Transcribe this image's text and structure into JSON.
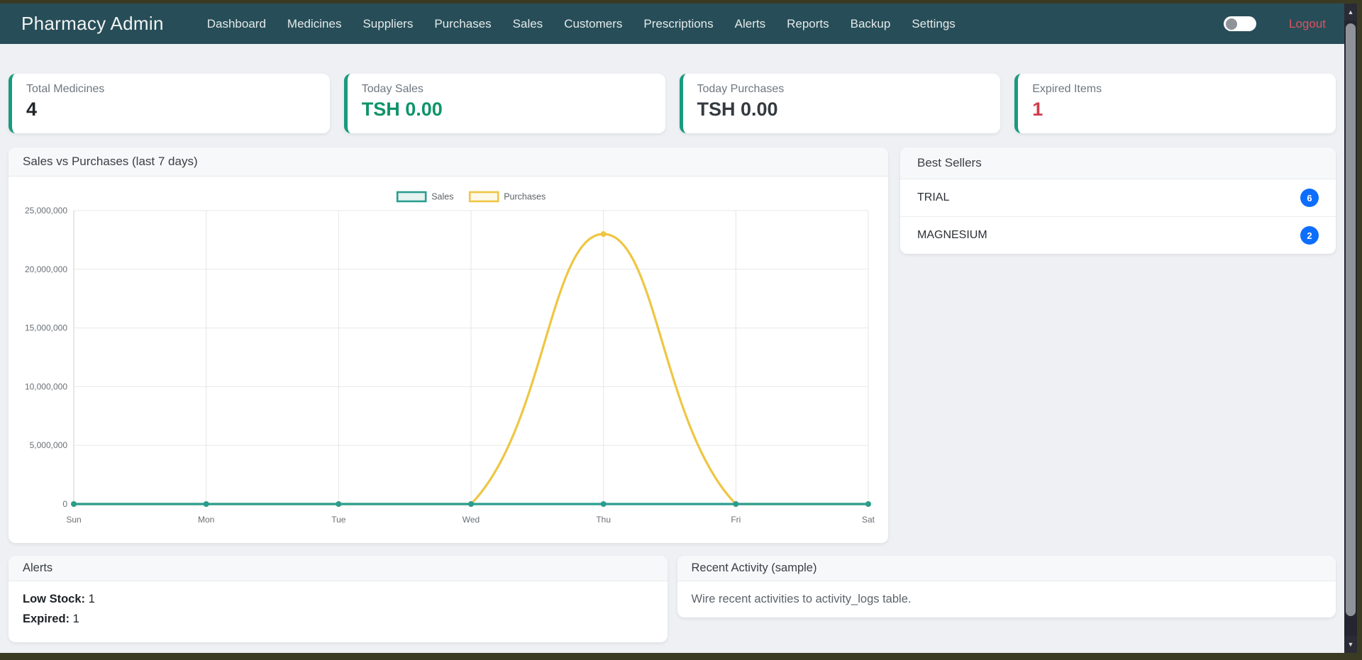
{
  "navbar": {
    "brand": "Pharmacy Admin",
    "items": [
      {
        "label": "Dashboard"
      },
      {
        "label": "Medicines"
      },
      {
        "label": "Suppliers"
      },
      {
        "label": "Purchases"
      },
      {
        "label": "Sales"
      },
      {
        "label": "Customers"
      },
      {
        "label": "Prescriptions"
      },
      {
        "label": "Alerts"
      },
      {
        "label": "Reports"
      },
      {
        "label": "Backup"
      },
      {
        "label": "Settings"
      }
    ],
    "theme_toggle_state": "off",
    "logout_label": "Logout"
  },
  "stats": [
    {
      "label": "Total Medicines",
      "value": "4",
      "value_color": "#212529"
    },
    {
      "label": "Today Sales",
      "value": "TSH 0.00",
      "value_color": "#10946a"
    },
    {
      "label": "Today Purchases",
      "value": "TSH 0.00",
      "value_color": "#343a40"
    },
    {
      "label": "Expired Items",
      "value": "1",
      "value_color": "#cf3c4c"
    }
  ],
  "chart_card": {
    "title": "Sales vs Purchases (last 7 days)"
  },
  "chart_data": {
    "type": "line",
    "categories": [
      "Sun",
      "Mon",
      "Tue",
      "Wed",
      "Thu",
      "Fri",
      "Sat"
    ],
    "series": [
      {
        "name": "Sales",
        "color": "#2a9d8f",
        "values": [
          0,
          0,
          0,
          0,
          0,
          0,
          0
        ]
      },
      {
        "name": "Purchases",
        "color": "#eec643",
        "values": [
          0,
          0,
          0,
          0,
          23000000,
          0,
          0
        ]
      }
    ],
    "ylim": [
      0,
      25000000
    ],
    "ytick_step": 5000000,
    "ytick_labels": [
      "0",
      "5,000,000",
      "10,000,000",
      "15,000,000",
      "20,000,000",
      "25,000,000"
    ],
    "grid": true,
    "legend_position": "top",
    "line_tension": 0.4
  },
  "best_sellers": {
    "title": "Best Sellers",
    "badge_color": "#0d6efd",
    "items": [
      {
        "name": "TRIAL",
        "count": "6"
      },
      {
        "name": "MAGNESIUM",
        "count": "2"
      }
    ]
  },
  "alerts_card": {
    "title": "Alerts",
    "rows": [
      {
        "label": "Low Stock:",
        "value": "1"
      },
      {
        "label": "Expired:",
        "value": "1"
      }
    ]
  },
  "recent_card": {
    "title": "Recent Activity (sample)",
    "message": "Wire recent activities to activity_logs table."
  },
  "icons": {
    "scroll_up": "▲",
    "scroll_down": "▼"
  },
  "theme": {
    "navbar_bg": "#274e58",
    "accent_green": "#199a7e",
    "logout_red": "#e0525f",
    "frame_olive": "#3b3b24"
  }
}
